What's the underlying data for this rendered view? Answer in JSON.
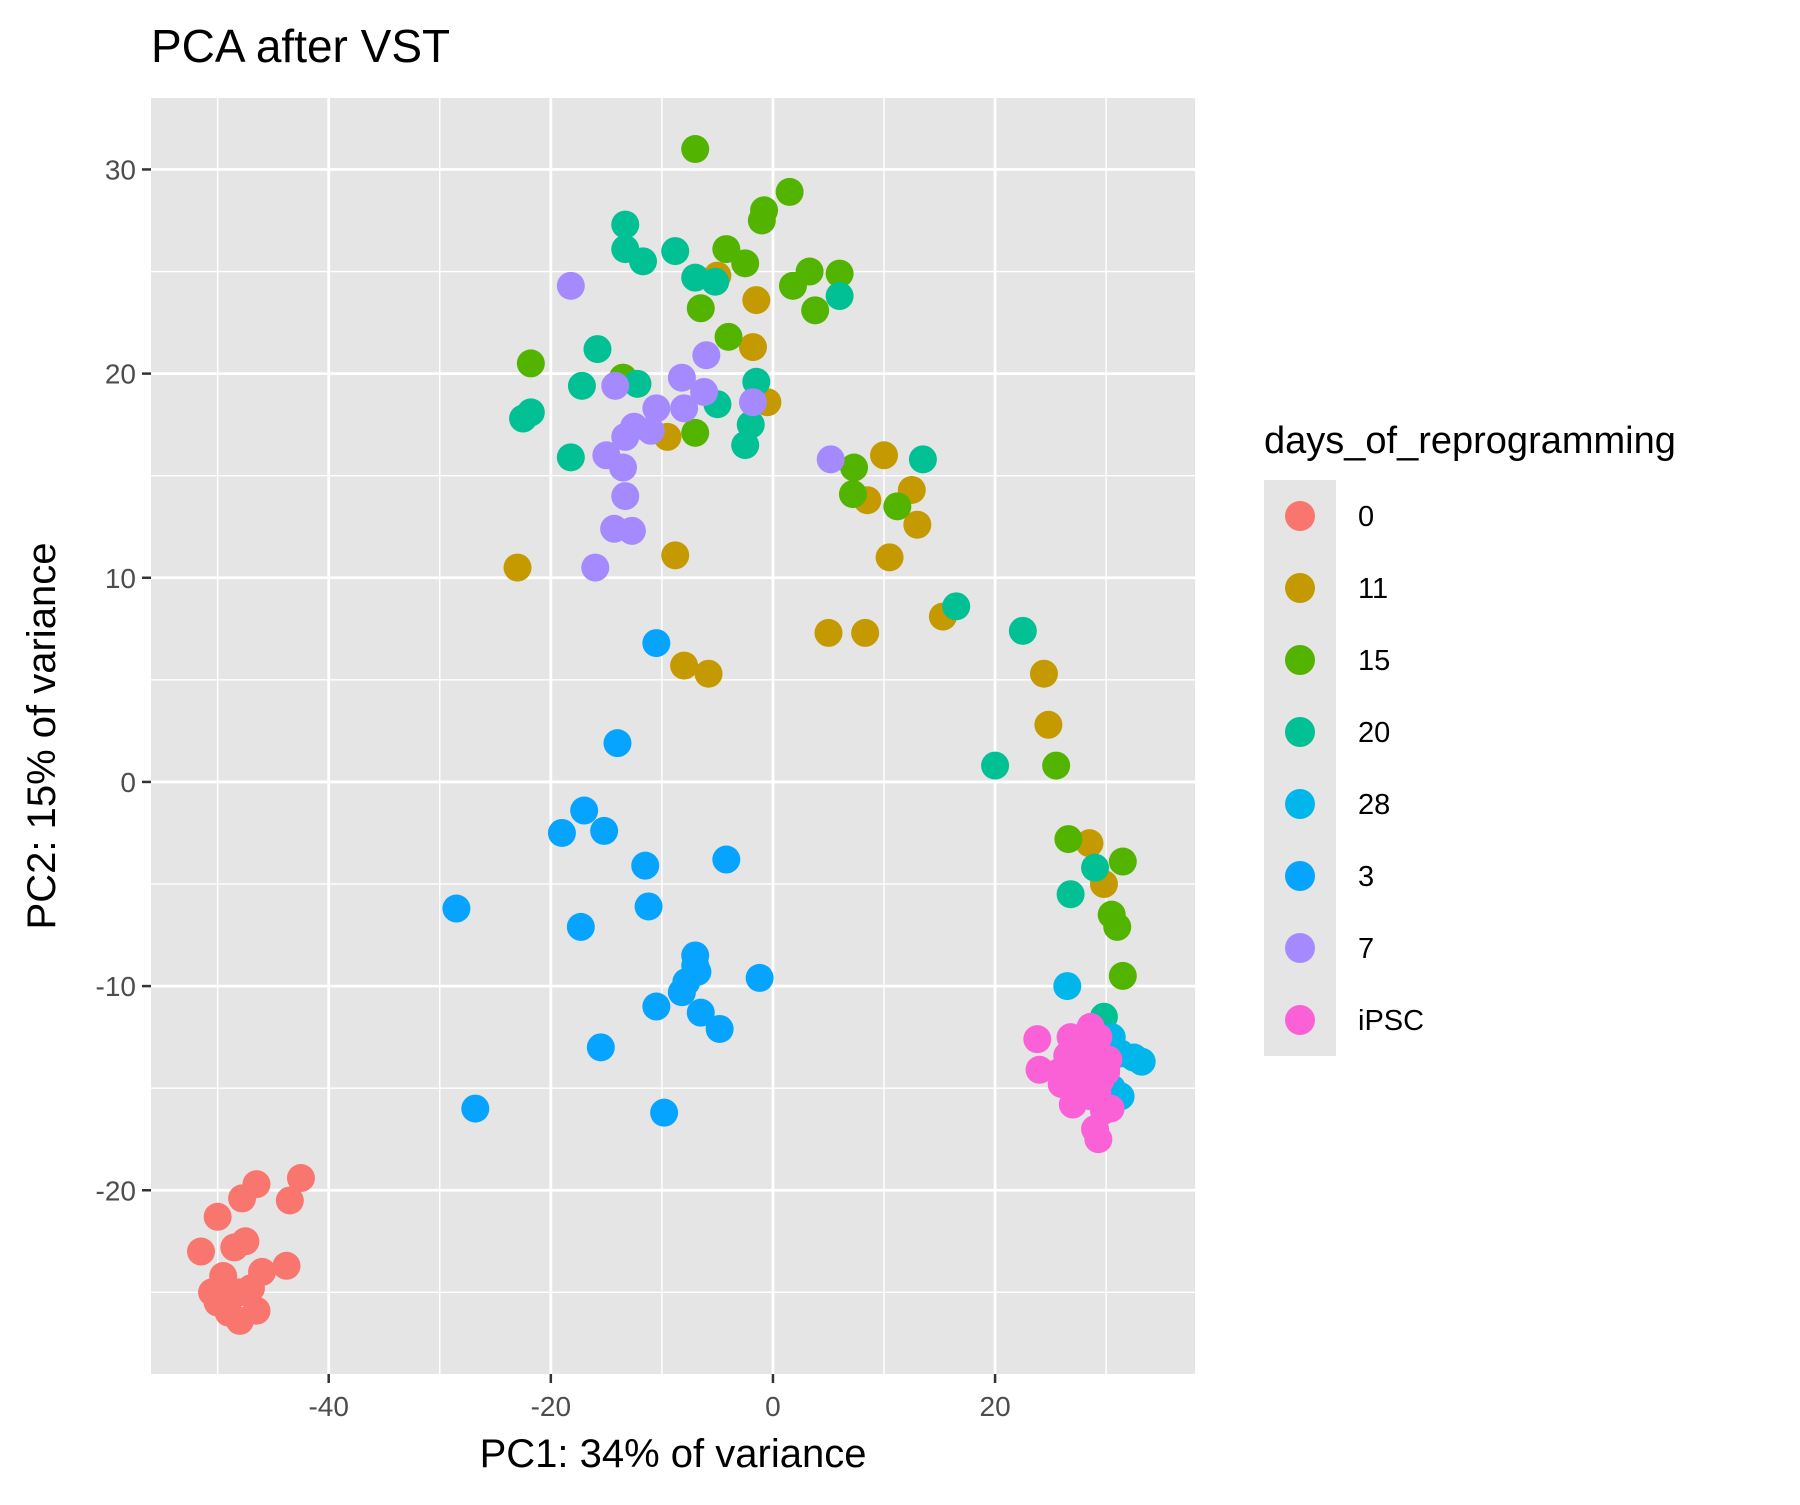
{
  "chart_data": {
    "type": "scatter",
    "title": "PCA after VST",
    "xlabel": "PC1: 34% of variance",
    "ylabel": "PC2: 15% of variance",
    "xlim": [
      -56,
      38
    ],
    "ylim": [
      -29,
      33.5
    ],
    "x_ticks": [
      -40,
      -20,
      0,
      20
    ],
    "y_ticks": [
      -20,
      -10,
      0,
      10,
      20,
      30
    ],
    "grid": true,
    "legend": {
      "title": "days_of_reprogramming",
      "position": "right"
    },
    "background": "#e5e5e5",
    "series": [
      {
        "name": "0",
        "color": "#f8766d",
        "points": [
          [
            -51.5,
            -23
          ],
          [
            -50,
            -21.3
          ],
          [
            -50.5,
            -25
          ],
          [
            -49.5,
            -24.2
          ],
          [
            -48.5,
            -22.8
          ],
          [
            -47.5,
            -22.5
          ],
          [
            -47.8,
            -20.4
          ],
          [
            -46.5,
            -19.7
          ],
          [
            -42.5,
            -19.4
          ],
          [
            -43.5,
            -20.5
          ],
          [
            -43.8,
            -23.7
          ],
          [
            -46,
            -24
          ],
          [
            -46.5,
            -25.9
          ],
          [
            -48,
            -26.4
          ],
          [
            -49,
            -26
          ],
          [
            -50,
            -25.5
          ],
          [
            -48,
            -25
          ],
          [
            -47,
            -24.8
          ]
        ]
      },
      {
        "name": "11",
        "color": "#c49a00",
        "points": [
          [
            -23,
            10.5
          ],
          [
            -13.5,
            19.8
          ],
          [
            -9.5,
            16.9
          ],
          [
            -8.8,
            11.1
          ],
          [
            -8,
            5.7
          ],
          [
            -5.8,
            5.3
          ],
          [
            -5,
            24.8
          ],
          [
            -1.5,
            23.6
          ],
          [
            -1.8,
            21.3
          ],
          [
            -0.5,
            18.6
          ],
          [
            5,
            7.3
          ],
          [
            8.3,
            7.3
          ],
          [
            10,
            16
          ],
          [
            8.5,
            13.8
          ],
          [
            12.5,
            14.3
          ],
          [
            10.5,
            11
          ],
          [
            13,
            12.6
          ],
          [
            15.3,
            8.1
          ],
          [
            24.4,
            5.3
          ],
          [
            24.8,
            2.8
          ],
          [
            28.5,
            -3
          ],
          [
            29.8,
            -5
          ]
        ]
      },
      {
        "name": "15",
        "color": "#53b400",
        "points": [
          [
            -7,
            31
          ],
          [
            1.5,
            28.9
          ],
          [
            -0.8,
            28
          ],
          [
            -1,
            27.5
          ],
          [
            -4.2,
            26.1
          ],
          [
            -2.5,
            25.4
          ],
          [
            3.3,
            25
          ],
          [
            6,
            24.9
          ],
          [
            1.8,
            24.3
          ],
          [
            3.8,
            23.1
          ],
          [
            -6.5,
            23.2
          ],
          [
            -4,
            21.8
          ],
          [
            -21.8,
            20.5
          ],
          [
            -13.5,
            19.8
          ],
          [
            -7,
            17.1
          ],
          [
            7.3,
            15.4
          ],
          [
            7.2,
            14.1
          ],
          [
            11.2,
            13.5
          ],
          [
            25.5,
            0.8
          ],
          [
            26.6,
            -2.8
          ],
          [
            31.5,
            -3.9
          ],
          [
            30.5,
            -6.5
          ],
          [
            31,
            -7.1
          ],
          [
            31.5,
            -9.5
          ]
        ]
      },
      {
        "name": "20",
        "color": "#00c094",
        "points": [
          [
            -13.3,
            27.3
          ],
          [
            -13.3,
            26.1
          ],
          [
            -11.7,
            25.5
          ],
          [
            -8.8,
            26
          ],
          [
            -7,
            24.7
          ],
          [
            -5.2,
            24.5
          ],
          [
            6,
            23.8
          ],
          [
            -15.8,
            21.2
          ],
          [
            -17.2,
            19.4
          ],
          [
            -12.2,
            19.5
          ],
          [
            -22.5,
            17.8
          ],
          [
            -21.8,
            18.1
          ],
          [
            -18.2,
            15.9
          ],
          [
            -1.5,
            19.6
          ],
          [
            -5,
            18.5
          ],
          [
            -2,
            17.5
          ],
          [
            -2.5,
            16.5
          ],
          [
            13.5,
            15.8
          ],
          [
            16.5,
            8.6
          ],
          [
            22.5,
            7.4
          ],
          [
            20,
            0.8
          ],
          [
            26.8,
            -5.5
          ],
          [
            29,
            -4.2
          ],
          [
            29.8,
            -11.5
          ]
        ]
      },
      {
        "name": "28",
        "color": "#00b6eb",
        "points": [
          [
            26.5,
            -10
          ],
          [
            30.5,
            -12.5
          ],
          [
            31.3,
            -13.3
          ],
          [
            32.5,
            -13.5
          ],
          [
            33.2,
            -13.7
          ],
          [
            30,
            -14.1
          ],
          [
            30.5,
            -15
          ],
          [
            31.3,
            -15.4
          ],
          [
            29.5,
            -15.6
          ],
          [
            28.8,
            -14.8
          ]
        ]
      },
      {
        "name": "3",
        "color": "#06a4ff",
        "points": [
          [
            -10.5,
            6.8
          ],
          [
            -14,
            1.9
          ],
          [
            -17,
            -1.4
          ],
          [
            -19,
            -2.5
          ],
          [
            -15.2,
            -2.4
          ],
          [
            -11.5,
            -4.1
          ],
          [
            -4.2,
            -3.8
          ],
          [
            -28.5,
            -6.2
          ],
          [
            -17.3,
            -7.1
          ],
          [
            -11.2,
            -6.1
          ],
          [
            -7,
            -8.5
          ],
          [
            -7,
            -9
          ],
          [
            -6.8,
            -9.3
          ],
          [
            -7.8,
            -9.8
          ],
          [
            -8.2,
            -10.3
          ],
          [
            -1.2,
            -9.6
          ],
          [
            -10.5,
            -11
          ],
          [
            -6.5,
            -11.3
          ],
          [
            -4.8,
            -12.1
          ],
          [
            -15.5,
            -13
          ],
          [
            -26.8,
            -16
          ],
          [
            -9.8,
            -16.2
          ]
        ]
      },
      {
        "name": "7",
        "color": "#a58aff",
        "points": [
          [
            -18.2,
            24.3
          ],
          [
            -6,
            20.9
          ],
          [
            -14.2,
            19.4
          ],
          [
            -8.2,
            19.8
          ],
          [
            -6.2,
            19.1
          ],
          [
            -8,
            18.3
          ],
          [
            -10.5,
            18.3
          ],
          [
            -12.5,
            17.4
          ],
          [
            -13.3,
            16.9
          ],
          [
            -11,
            17.2
          ],
          [
            -15,
            16
          ],
          [
            -13.5,
            15.4
          ],
          [
            -1.8,
            18.6
          ],
          [
            5.2,
            15.8
          ],
          [
            -13.3,
            14
          ],
          [
            -14.3,
            12.4
          ],
          [
            -12.7,
            12.3
          ],
          [
            -16,
            10.5
          ]
        ]
      },
      {
        "name": "iPSC",
        "color": "#fb61d7",
        "points": [
          [
            23.8,
            -12.6
          ],
          [
            24,
            -14.1
          ],
          [
            25.8,
            -14.2
          ],
          [
            26,
            -14.8
          ],
          [
            26.8,
            -12.5
          ],
          [
            27.5,
            -13
          ],
          [
            28,
            -13.8
          ],
          [
            28.6,
            -12
          ],
          [
            29.3,
            -12.5
          ],
          [
            29,
            -13.2
          ],
          [
            30,
            -14.2
          ],
          [
            29.5,
            -14.6
          ],
          [
            28.2,
            -14.8
          ],
          [
            27.2,
            -15.1
          ],
          [
            27,
            -15.8
          ],
          [
            28.6,
            -15.4
          ],
          [
            29.2,
            -15.2
          ],
          [
            29.8,
            -16.1
          ],
          [
            30.4,
            -16
          ],
          [
            29,
            -17
          ],
          [
            29.3,
            -17.5
          ],
          [
            27.8,
            -14.3
          ],
          [
            26.5,
            -13.4
          ],
          [
            30.2,
            -13.6
          ]
        ]
      }
    ]
  }
}
